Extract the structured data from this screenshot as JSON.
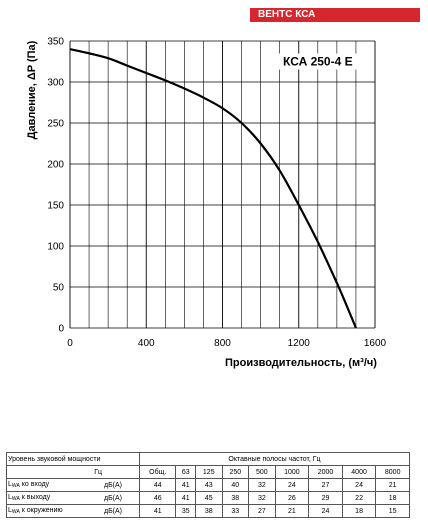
{
  "brand": "ВЕНТС КСА",
  "chart_data": {
    "type": "line",
    "model_label": "КСА 250-4 Е",
    "xlabel": "Производительность, (м³/ч)",
    "ylabel": "Давление, ΔP (Па)",
    "xlim": [
      0,
      1600
    ],
    "ylim": [
      0,
      350
    ],
    "x_ticks": [
      "0",
      "400",
      "800",
      "1200",
      "1600"
    ],
    "y_ticks": [
      "0",
      "50",
      "100",
      "150",
      "200",
      "250",
      "300",
      "350"
    ],
    "grid": true,
    "series": [
      {
        "x": [
          0,
          100,
          200,
          300,
          400,
          500,
          600,
          700,
          800,
          900,
          1000,
          1100,
          1200,
          1300,
          1400,
          1450,
          1500
        ],
        "y": [
          340,
          335,
          329,
          320,
          311,
          302,
          292,
          281,
          268,
          250,
          225,
          192,
          150,
          105,
          55,
          28,
          0
        ]
      }
    ]
  },
  "sound_table": {
    "title": "Уровень звуковой мощности",
    "octave_title": "Октавные полосы частот, Гц",
    "hz_label": "Гц",
    "headers": [
      "Общ.",
      "63",
      "125",
      "250",
      "500",
      "1000",
      "2000",
      "4000",
      "8000"
    ],
    "rows": [
      {
        "label_prefix": "L",
        "label_sub": "WA",
        "label_rest": " ко входу",
        "unit": "дБ(А)",
        "values": [
          "44",
          "41",
          "43",
          "40",
          "32",
          "24",
          "27",
          "24",
          "21"
        ]
      },
      {
        "label_prefix": "L",
        "label_sub": "WA",
        "label_rest": " к выходу",
        "unit": "дБ(А)",
        "values": [
          "46",
          "41",
          "45",
          "38",
          "32",
          "26",
          "29",
          "22",
          "18"
        ]
      },
      {
        "label_prefix": "L",
        "label_sub": "WA",
        "label_rest": " к окружению",
        "unit": "дБ(А)",
        "values": [
          "41",
          "35",
          "38",
          "33",
          "27",
          "21",
          "24",
          "18",
          "15"
        ]
      }
    ]
  }
}
